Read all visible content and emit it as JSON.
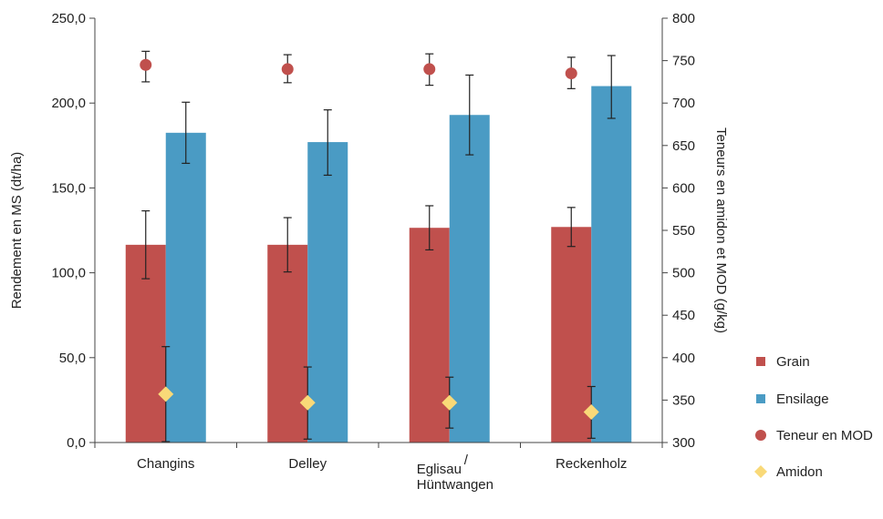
{
  "chart_data": {
    "type": "bar",
    "categories": [
      "Changins",
      "Delley",
      "Eglisau / Hüntwangen",
      "Reckenholz"
    ],
    "category_lines": [
      [
        "Changins"
      ],
      [
        "Delley"
      ],
      [
        "Eglisau",
        "/",
        "Hüntwangen"
      ],
      [
        "Reckenholz"
      ]
    ],
    "series": [
      {
        "name": "Grain",
        "type": "bar",
        "axis": "left",
        "color": "#c0504d",
        "values": [
          116.5,
          116.5,
          126.5,
          127.0
        ],
        "err_low": [
          96.5,
          100.5,
          113.5,
          115.5
        ],
        "err_high": [
          136.5,
          132.5,
          139.5,
          138.5
        ]
      },
      {
        "name": "Ensilage",
        "type": "bar",
        "axis": "left",
        "color": "#4a9bc4",
        "values": [
          182.5,
          177.0,
          193.0,
          210.0
        ],
        "err_low": [
          164.5,
          157.5,
          169.5,
          191.0
        ],
        "err_high": [
          200.5,
          196.0,
          216.5,
          228.0
        ]
      },
      {
        "name": "Teneur en MOD",
        "type": "scatter",
        "axis": "right",
        "color": "#c0504d",
        "marker": "circle",
        "values": [
          745,
          740,
          740,
          735
        ],
        "err_low": [
          725,
          724,
          721,
          717
        ],
        "err_high": [
          761,
          757,
          758,
          754
        ]
      },
      {
        "name": "Amidon",
        "type": "scatter",
        "axis": "right",
        "color": "#f9d978",
        "marker": "diamond",
        "values": [
          357,
          347,
          347,
          336
        ],
        "err_low": [
          301,
          304,
          317,
          305
        ],
        "err_high": [
          413,
          389,
          377,
          366
        ]
      }
    ],
    "y_left": {
      "label": "Rendement en MS (dt/ha)",
      "min": 0,
      "max": 250,
      "ticks": [
        "0,0",
        "50,0",
        "100,0",
        "150,0",
        "200,0",
        "250,0"
      ]
    },
    "y_right": {
      "label": "Teneurs en amidon et MOD (g/kg)",
      "min": 300,
      "max": 800,
      "ticks": [
        "300",
        "350",
        "400",
        "450",
        "500",
        "550",
        "600",
        "650",
        "700",
        "750",
        "800"
      ]
    },
    "legend_position": "right",
    "grid": false
  }
}
